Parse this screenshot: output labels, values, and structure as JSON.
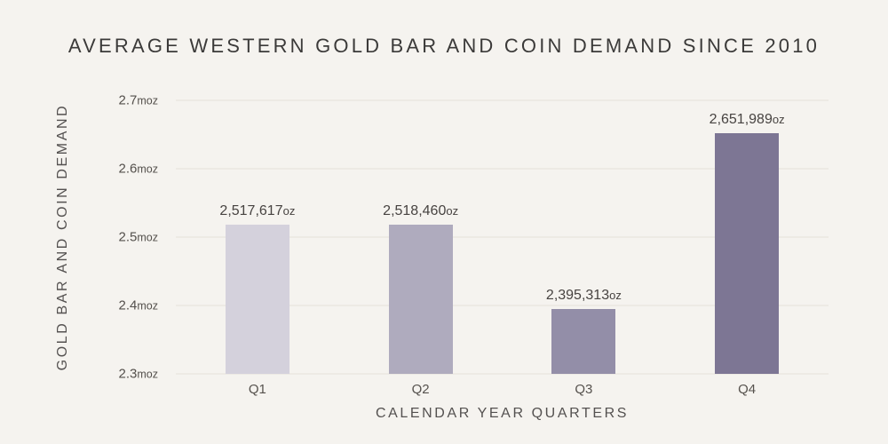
{
  "chart_data": {
    "type": "bar",
    "title": "AVERAGE WESTERN GOLD BAR AND COIN DEMAND SINCE 2010",
    "xlabel": "CALENDAR YEAR QUARTERS",
    "ylabel": "GOLD BAR AND COIN DEMAND",
    "categories": [
      "Q1",
      "Q2",
      "Q3",
      "Q4"
    ],
    "values": [
      2517617,
      2518460,
      2395313,
      2651989
    ],
    "value_labels": [
      "2,517,617",
      "2,518,460",
      "2,395,313",
      "2,651,989"
    ],
    "value_unit": "oz",
    "y_ticks": [
      {
        "num": "2.3",
        "unit": "moz",
        "value": 2300000
      },
      {
        "num": "2.4",
        "unit": "moz",
        "value": 2400000
      },
      {
        "num": "2.5",
        "unit": "moz",
        "value": 2500000
      },
      {
        "num": "2.6",
        "unit": "moz",
        "value": 2600000
      },
      {
        "num": "2.7",
        "unit": "moz",
        "value": 2700000
      }
    ],
    "ylim": [
      2300000,
      2700000
    ],
    "grid": true,
    "legend": "none",
    "bar_colors": [
      "#d4d1dc",
      "#afabbe",
      "#938ea8",
      "#7d7694"
    ],
    "background_color": "#f5f3ef",
    "gridline_color": "#edeae4"
  }
}
